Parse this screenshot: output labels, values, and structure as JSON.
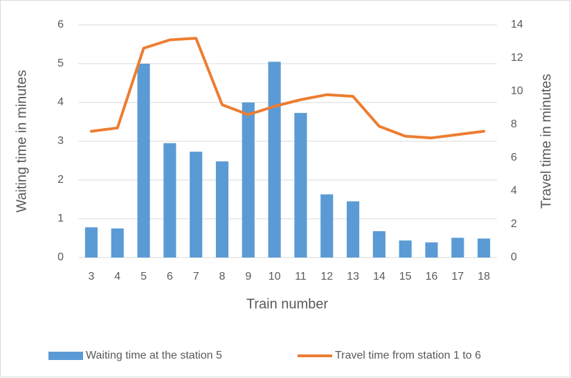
{
  "chart_data": {
    "type": "bar",
    "categories": [
      "3",
      "4",
      "5",
      "6",
      "7",
      "8",
      "9",
      "10",
      "11",
      "12",
      "13",
      "14",
      "15",
      "16",
      "17",
      "18"
    ],
    "series": [
      {
        "name": "Waiting time at the station 5",
        "color": "#5b9bd5",
        "type": "bar",
        "values": [
          0.78,
          0.75,
          5.0,
          2.95,
          2.73,
          2.48,
          4.0,
          5.05,
          3.73,
          1.63,
          1.45,
          0.68,
          0.44,
          0.39,
          0.51,
          0.49
        ]
      },
      {
        "name": "Travel time from station 1 to 6",
        "color": "#ed7d31",
        "type": "line",
        "axis": "y2",
        "values": [
          7.6,
          7.8,
          12.6,
          13.1,
          13.2,
          9.2,
          8.6,
          9.1,
          9.5,
          9.8,
          9.7,
          7.9,
          7.3,
          7.2,
          7.4,
          7.6
        ]
      }
    ],
    "xlabel": "Train number",
    "ylabel": "Waiting time in minutes",
    "y2label": "Travel time in minutes",
    "ylim": [
      0,
      6
    ],
    "yticks": [
      0,
      1,
      2,
      3,
      4,
      5,
      6
    ],
    "y2lim": [
      0,
      14
    ],
    "y2ticks": [
      0,
      2,
      4,
      6,
      8,
      10,
      12,
      14
    ],
    "grid": true,
    "legend": "bottom"
  }
}
